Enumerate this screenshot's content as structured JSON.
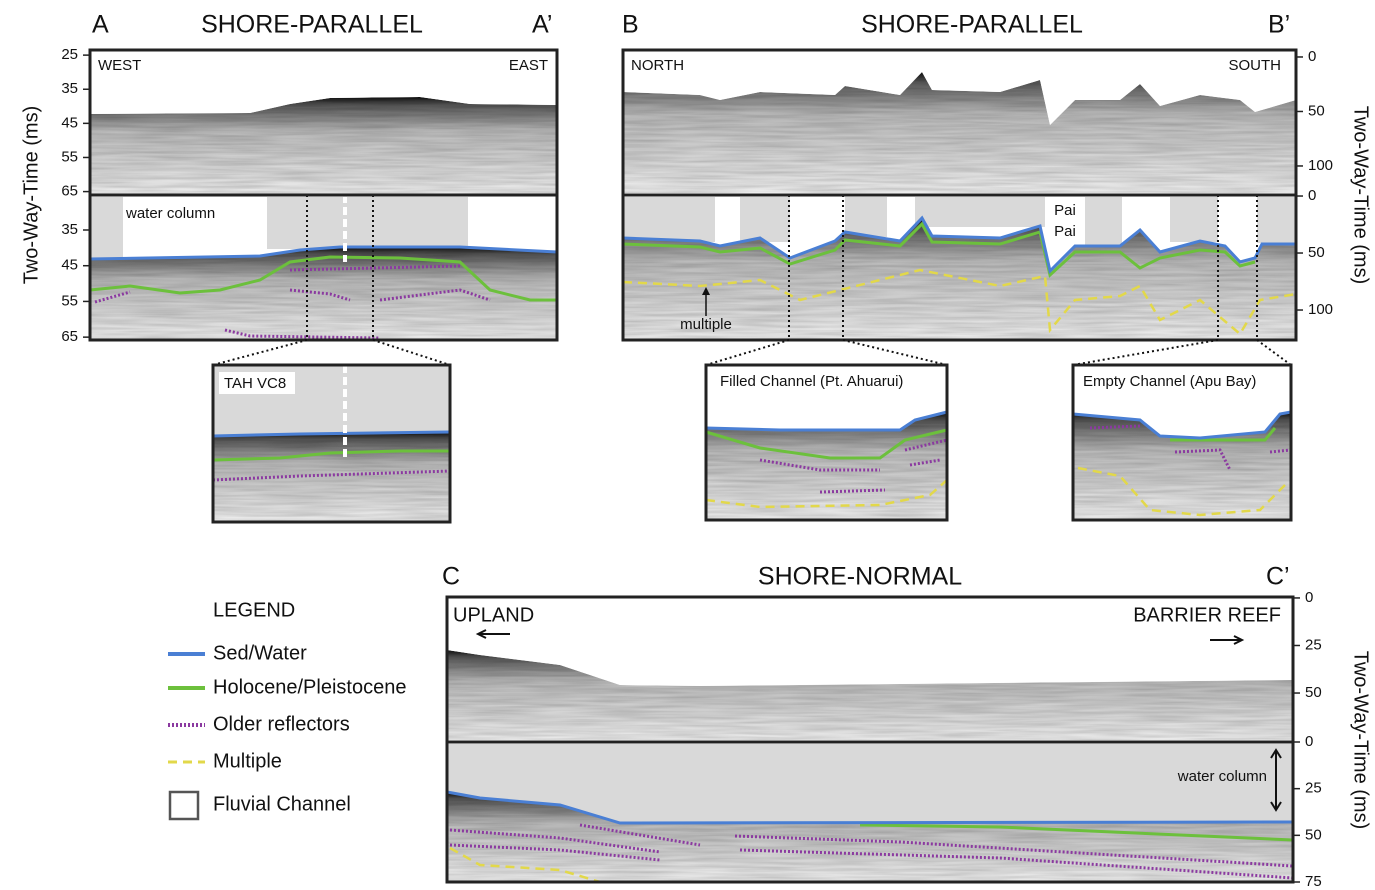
{
  "panels": {
    "A": {
      "letter": "A",
      "title": "SHORE-PARALLEL",
      "end_letter": "A’",
      "left_label": "WEST",
      "right_label": "EAST",
      "water_label": "water column",
      "inset_label": "TAH VC8",
      "axis_title": "Two-Way-Time (ms)",
      "axes": [
        {
          "lim": [
            23.5,
            66
          ],
          "ticks": [
            25,
            35,
            45,
            55,
            65
          ]
        },
        {
          "lim": [
            25.2,
            65.8
          ],
          "ticks": [
            35,
            45,
            55,
            65
          ]
        }
      ]
    },
    "B": {
      "letter": "B",
      "title": "SHORE-PARALLEL",
      "end_letter": "B’",
      "left_label": "NORTH",
      "right_label": "SOUTH",
      "place_label": [
        "Pai",
        "Pai"
      ],
      "multiple_label": "multiple",
      "inset_labels": [
        "Filled Channel (Pt. Ahuarui)",
        "Empty Channel (Apu Bay)"
      ],
      "axis_title": "Two-Way-Time (ms)",
      "axes": [
        {
          "lim": [
            -6.4,
            124.8
          ],
          "ticks": [
            0,
            50,
            100
          ]
        },
        {
          "lim": [
            -0.9,
            126.3
          ],
          "ticks": [
            0,
            50,
            100
          ]
        }
      ]
    },
    "C": {
      "letter": "C",
      "title": "SHORE-NORMAL",
      "end_letter": "C’",
      "left_label": "UPLAND",
      "right_label": "BARRIER REEF",
      "water_label": "water column",
      "axis_title": "Two-Way-Time (ms)",
      "axes": [
        {
          "lim": [
            -0.5,
            74.7
          ],
          "ticks": [
            0,
            25,
            50
          ]
        },
        {
          "lim": [
            0,
            75
          ],
          "ticks": [
            0,
            25,
            50,
            75
          ]
        }
      ]
    }
  },
  "legend": {
    "title": "LEGEND",
    "items": [
      "Sed/Water",
      "Holocene/Pleistocene",
      "Older reflectors",
      "Multiple",
      "Fluvial Channel"
    ]
  }
}
